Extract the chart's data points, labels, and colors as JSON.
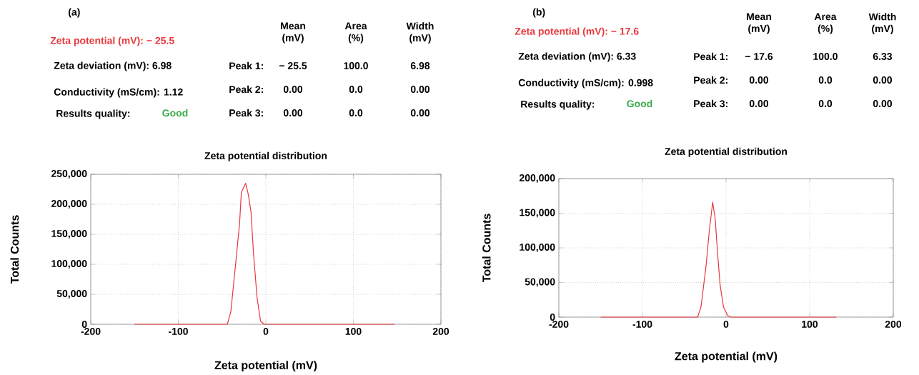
{
  "chart_data": [
    {
      "type": "other",
      "annotations": [
        "(a)",
        "Zeta potential (mV): − 25.5",
        "Zeta deviation (mV): 6.98",
        "Conductivity (mS/cm): 1.12",
        "Results quality:",
        "Good",
        "Mean (mV)",
        "Area (%)",
        "Width (mV)",
        "Peak 1:",
        "− 25.5",
        "100.0",
        "6.98",
        "Peak 2:",
        "0.00",
        "0.0",
        "0.00",
        "Peak 3:",
        "0.00",
        "0.0",
        "0.00"
      ]
    },
    {
      "type": "line",
      "title": "Zeta potential distribution",
      "xlabel": "Zeta potential (mV)",
      "ylabel": "Total Counts",
      "grid": true,
      "marker": "none",
      "line_style": "solid",
      "xlim": [
        -200,
        200
      ],
      "ylim": [
        0,
        250000
      ],
      "xticks": [
        -200,
        -100,
        0,
        100,
        200
      ],
      "yticks": [
        {
          "value": 0,
          "label": "0"
        },
        {
          "value": 50000,
          "label": "50,000"
        },
        {
          "value": 100000,
          "label": "100,000"
        },
        {
          "value": 150000,
          "label": "150,000"
        },
        {
          "value": 200000,
          "label": "200,000"
        },
        {
          "value": 250000,
          "label": "250,000"
        }
      ],
      "x": [
        -150,
        -44,
        -40,
        -34,
        -30,
        -28,
        -23,
        -20,
        -17,
        -14,
        -10,
        -6,
        -2,
        147
      ],
      "series": [
        {
          "color": "#e8383d",
          "values": [
            0,
            0,
            21000,
            108000,
            168000,
            220000,
            235000,
            216000,
            188000,
            116000,
            44000,
            5000,
            0,
            0
          ]
        }
      ]
    },
    {
      "type": "other",
      "annotations": [
        "(b)",
        "Zeta potential (mV): − 17.6",
        "Zeta deviation (mV): 6.33",
        "Conductivity (mS/cm): 0.998",
        "Results quality:",
        "Good",
        "Mean (mV)",
        "Area (%)",
        "Width (mV)",
        "Peak 1:",
        "− 17.6",
        "100.0",
        "6.33",
        "Peak 2:",
        "0.00",
        "0.0",
        "0.00",
        "Peak 3:",
        "0.00",
        "0.0",
        "0.00"
      ]
    },
    {
      "type": "line",
      "title": "Zeta potential distribution",
      "xlabel": "Zeta potential (mV)",
      "ylabel": "Total Counts",
      "grid": true,
      "marker": "none",
      "line_style": "solid",
      "xlim": [
        -200,
        200
      ],
      "ylim": [
        0,
        200000
      ],
      "xticks": [
        -200,
        -100,
        0,
        100,
        200
      ],
      "yticks": [
        {
          "value": 0,
          "label": "0"
        },
        {
          "value": 50000,
          "label": "50,000"
        },
        {
          "value": 100000,
          "label": "100,000"
        },
        {
          "value": 150000,
          "label": "150,000"
        },
        {
          "value": 200000,
          "label": "200,000"
        }
      ],
      "x": [
        -150,
        -34,
        -30,
        -24,
        -20,
        -16,
        -13,
        -10,
        -7,
        -3,
        2,
        6,
        132
      ],
      "series": [
        {
          "color": "#e8383d",
          "values": [
            0,
            0,
            14500,
            73000,
            125000,
            166000,
            142000,
            90000,
            45500,
            14500,
            2400,
            0,
            0
          ]
        }
      ]
    }
  ]
}
